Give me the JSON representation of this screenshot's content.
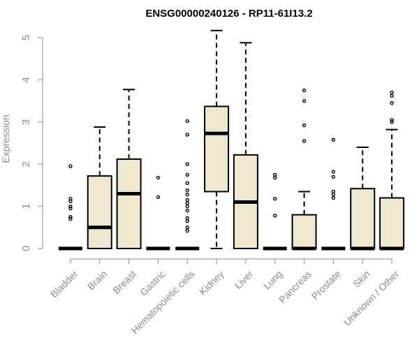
{
  "chart_data": {
    "type": "boxplot",
    "title": "ENSG00000240126 - RP11-61I13.2",
    "xlabel": "",
    "ylabel": "Expression",
    "ylim": [
      0,
      5.2
    ],
    "yticks": [
      0,
      1,
      2,
      3,
      4,
      5
    ],
    "box_color": "#efe8d0",
    "categories": [
      "Bladder",
      "Brain",
      "Breast",
      "Gastric",
      "Hematopoietic cells",
      "Kidney",
      "Liver",
      "Lung",
      "Pancreas",
      "Prostate",
      "Skin",
      "Unknown / Other"
    ],
    "boxes": [
      {
        "min": 0,
        "q1": 0,
        "median": 0,
        "q3": 0,
        "max": 0,
        "outliers": [
          1.95,
          1.18,
          1.12,
          1.0,
          0.95,
          0.75,
          0.7
        ]
      },
      {
        "min": 0,
        "q1": 0,
        "median": 0.5,
        "q3": 1.72,
        "max": 2.88,
        "outliers": []
      },
      {
        "min": 0,
        "q1": 0,
        "median": 1.3,
        "q3": 2.12,
        "max": 3.77,
        "outliers": []
      },
      {
        "min": 0,
        "q1": 0,
        "median": 0,
        "q3": 0,
        "max": 0,
        "outliers": [
          1.68,
          1.22
        ]
      },
      {
        "min": 0,
        "q1": 0,
        "median": 0,
        "q3": 0,
        "max": 0,
        "outliers": [
          3.02,
          2.7,
          2.0,
          1.75,
          1.55,
          1.38,
          1.28,
          1.15,
          1.08,
          1.0,
          0.9,
          0.72,
          0.65,
          0.5,
          0.42
        ]
      },
      {
        "min": 0,
        "q1": 1.35,
        "median": 2.73,
        "q3": 3.37,
        "max": 5.17,
        "outliers": []
      },
      {
        "min": 0,
        "q1": 0,
        "median": 1.1,
        "q3": 2.22,
        "max": 4.88,
        "outliers": []
      },
      {
        "min": 0,
        "q1": 0,
        "median": 0,
        "q3": 0,
        "max": 0,
        "outliers": [
          1.75,
          1.68,
          1.18,
          0.78
        ]
      },
      {
        "min": 0,
        "q1": 0,
        "median": 0,
        "q3": 0.8,
        "max": 1.35,
        "outliers": [
          3.75,
          3.5,
          2.92,
          2.55
        ]
      },
      {
        "min": 0,
        "q1": 0,
        "median": 0,
        "q3": 0,
        "max": 0,
        "outliers": [
          2.58,
          1.82,
          1.7,
          1.35,
          1.28,
          1.2
        ]
      },
      {
        "min": 0,
        "q1": 0,
        "median": 0,
        "q3": 1.42,
        "max": 2.4,
        "outliers": []
      },
      {
        "min": 0,
        "q1": 0,
        "median": 0,
        "q3": 1.2,
        "max": 2.82,
        "outliers": [
          3.7,
          3.62,
          3.45,
          3.05,
          3.0
        ]
      }
    ]
  }
}
